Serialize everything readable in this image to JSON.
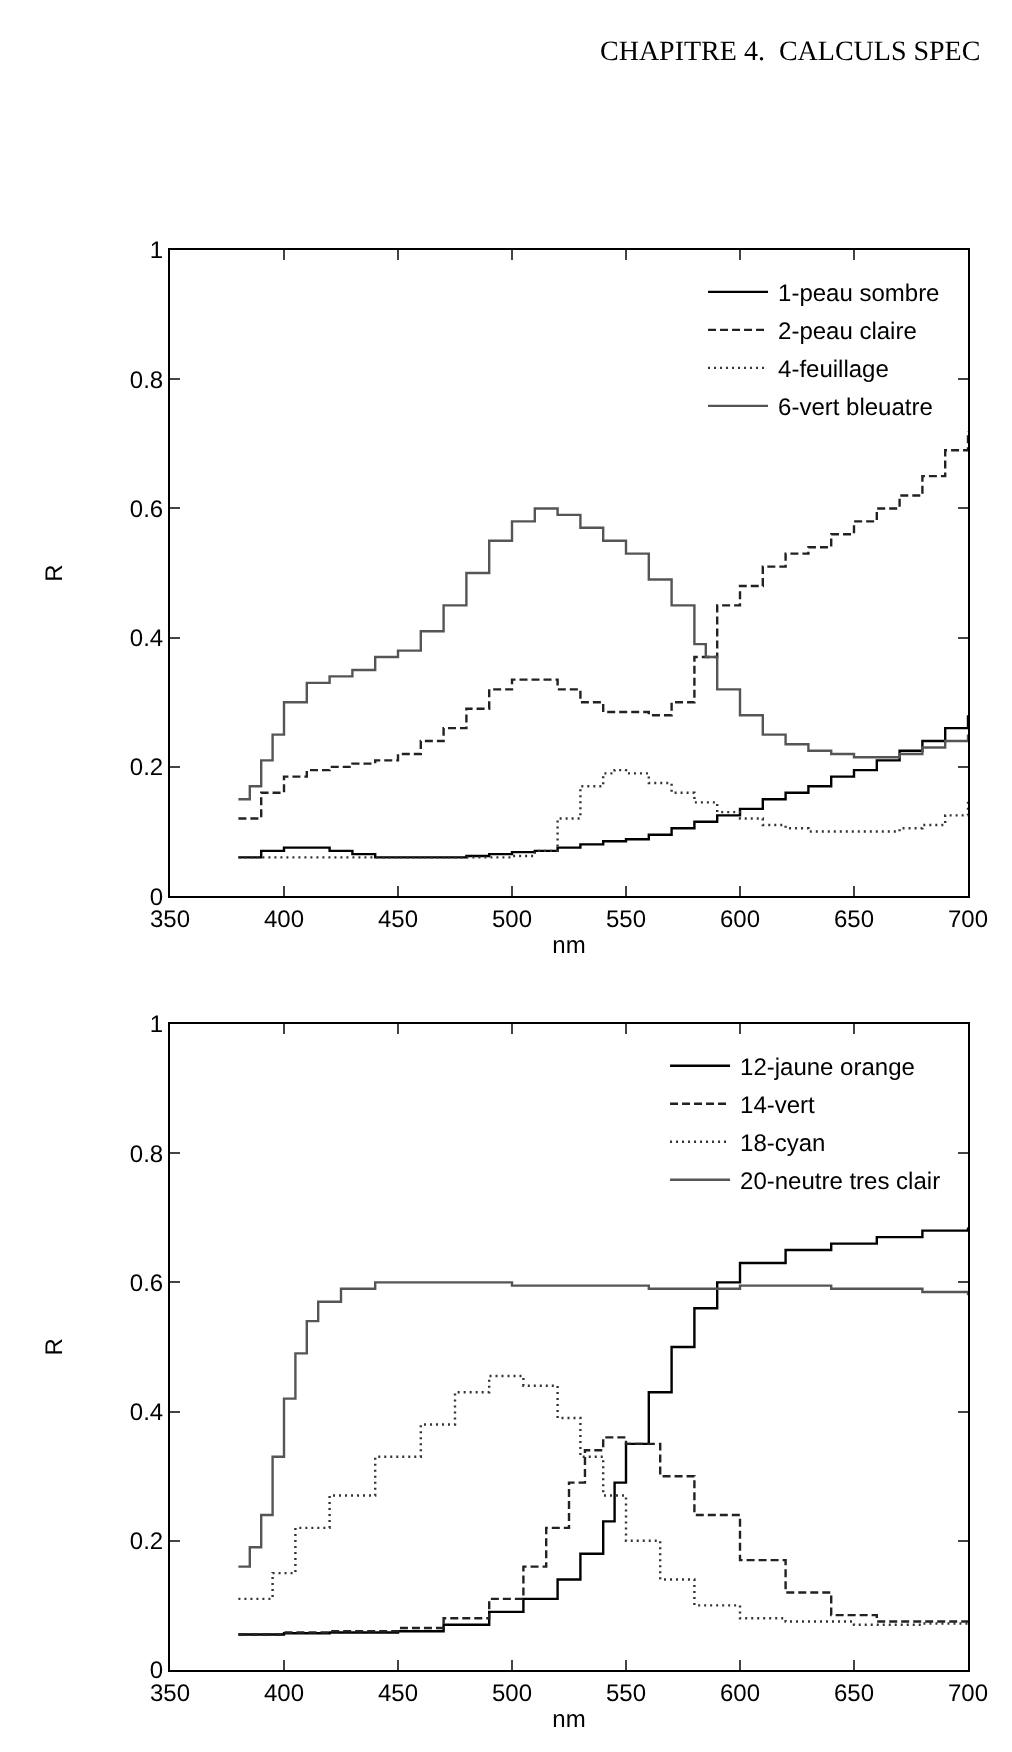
{
  "chart_data": [
    {
      "type": "step",
      "xlabel": "nm",
      "ylabel": "R",
      "xlim": [
        350,
        700
      ],
      "ylim": [
        0,
        1
      ],
      "xticks": [
        350,
        400,
        450,
        500,
        550,
        600,
        650,
        700
      ],
      "yticks": [
        0,
        0.2,
        0.4,
        0.6,
        0.8,
        1
      ],
      "legend": "top right",
      "annotations": [
        "CHAPITRE 4.  CALCULS SPEC"
      ],
      "series": [
        {
          "name": "1-peau sombre",
          "color": "#000000",
          "line_style": "solid",
          "x": [
            380,
            390,
            400,
            410,
            420,
            430,
            440,
            450,
            460,
            470,
            480,
            490,
            500,
            510,
            520,
            530,
            540,
            550,
            560,
            570,
            580,
            590,
            600,
            610,
            620,
            630,
            640,
            650,
            660,
            670,
            680,
            690,
            700
          ],
          "values": [
            0.06,
            0.07,
            0.075,
            0.075,
            0.07,
            0.065,
            0.06,
            0.06,
            0.06,
            0.06,
            0.062,
            0.065,
            0.068,
            0.07,
            0.075,
            0.08,
            0.085,
            0.088,
            0.095,
            0.105,
            0.115,
            0.125,
            0.135,
            0.15,
            0.16,
            0.17,
            0.185,
            0.195,
            0.21,
            0.225,
            0.24,
            0.26,
            0.28
          ]
        },
        {
          "name": "2-peau claire",
          "color": "#222222",
          "line_style": "dashed",
          "x": [
            380,
            390,
            400,
            410,
            420,
            430,
            440,
            450,
            460,
            470,
            480,
            490,
            500,
            510,
            520,
            530,
            540,
            550,
            560,
            570,
            580,
            590,
            600,
            610,
            620,
            630,
            640,
            650,
            660,
            670,
            680,
            690,
            700
          ],
          "values": [
            0.12,
            0.16,
            0.185,
            0.195,
            0.2,
            0.205,
            0.21,
            0.22,
            0.24,
            0.26,
            0.29,
            0.32,
            0.335,
            0.335,
            0.32,
            0.3,
            0.285,
            0.285,
            0.28,
            0.3,
            0.37,
            0.45,
            0.48,
            0.51,
            0.53,
            0.54,
            0.56,
            0.58,
            0.6,
            0.62,
            0.65,
            0.69,
            0.72
          ]
        },
        {
          "name": "4-feuillage",
          "color": "#333333",
          "line_style": "dotted",
          "x": [
            380,
            400,
            420,
            440,
            460,
            480,
            500,
            510,
            520,
            530,
            540,
            545,
            550,
            560,
            570,
            580,
            590,
            600,
            610,
            620,
            630,
            640,
            650,
            660,
            670,
            680,
            690,
            700
          ],
          "values": [
            0.06,
            0.06,
            0.06,
            0.06,
            0.06,
            0.06,
            0.062,
            0.07,
            0.12,
            0.17,
            0.19,
            0.195,
            0.19,
            0.175,
            0.16,
            0.145,
            0.13,
            0.12,
            0.11,
            0.105,
            0.1,
            0.1,
            0.1,
            0.1,
            0.105,
            0.11,
            0.125,
            0.15
          ]
        },
        {
          "name": "6-vert bleuatre",
          "color": "#555555",
          "line_style": "solid",
          "x": [
            380,
            385,
            390,
            395,
            400,
            410,
            420,
            430,
            440,
            450,
            460,
            470,
            480,
            490,
            500,
            510,
            520,
            530,
            540,
            550,
            560,
            570,
            580,
            585,
            590,
            600,
            610,
            620,
            630,
            640,
            650,
            660,
            670,
            680,
            690,
            700
          ],
          "values": [
            0.15,
            0.17,
            0.21,
            0.25,
            0.3,
            0.33,
            0.34,
            0.35,
            0.37,
            0.38,
            0.41,
            0.45,
            0.5,
            0.55,
            0.58,
            0.6,
            0.59,
            0.57,
            0.55,
            0.53,
            0.49,
            0.45,
            0.39,
            0.37,
            0.32,
            0.28,
            0.25,
            0.235,
            0.225,
            0.22,
            0.215,
            0.215,
            0.22,
            0.23,
            0.24,
            0.25
          ]
        }
      ]
    },
    {
      "type": "step",
      "xlabel": "nm",
      "ylabel": "R",
      "xlim": [
        350,
        700
      ],
      "ylim": [
        0,
        1
      ],
      "xticks": [
        350,
        400,
        450,
        500,
        550,
        600,
        650,
        700
      ],
      "yticks": [
        0,
        0.2,
        0.4,
        0.6,
        0.8,
        1
      ],
      "legend": "top right",
      "series": [
        {
          "name": "12-jaune orange",
          "color": "#000000",
          "line_style": "solid",
          "x": [
            380,
            400,
            420,
            450,
            470,
            490,
            505,
            520,
            530,
            540,
            545,
            550,
            560,
            570,
            580,
            590,
            600,
            620,
            640,
            660,
            680,
            700
          ],
          "values": [
            0.055,
            0.057,
            0.058,
            0.06,
            0.07,
            0.09,
            0.11,
            0.14,
            0.18,
            0.23,
            0.29,
            0.35,
            0.43,
            0.5,
            0.56,
            0.6,
            0.63,
            0.65,
            0.66,
            0.67,
            0.68,
            0.685
          ]
        },
        {
          "name": "14-vert",
          "color": "#222222",
          "line_style": "dashed",
          "x": [
            380,
            400,
            420,
            450,
            470,
            490,
            505,
            515,
            525,
            532,
            540,
            550,
            565,
            580,
            600,
            620,
            640,
            660,
            680,
            700
          ],
          "values": [
            0.055,
            0.058,
            0.06,
            0.065,
            0.08,
            0.11,
            0.16,
            0.22,
            0.29,
            0.34,
            0.36,
            0.35,
            0.3,
            0.24,
            0.17,
            0.12,
            0.085,
            0.075,
            0.075,
            0.08
          ]
        },
        {
          "name": "18-cyan",
          "color": "#333333",
          "line_style": "dotted",
          "x": [
            380,
            395,
            405,
            420,
            440,
            460,
            475,
            490,
            505,
            520,
            530,
            540,
            550,
            565,
            580,
            600,
            620,
            650,
            680,
            700
          ],
          "values": [
            0.11,
            0.15,
            0.22,
            0.27,
            0.33,
            0.38,
            0.43,
            0.455,
            0.44,
            0.39,
            0.33,
            0.27,
            0.2,
            0.14,
            0.1,
            0.08,
            0.075,
            0.07,
            0.072,
            0.075
          ]
        },
        {
          "name": "20-neutre tres clair",
          "color": "#555555",
          "line_style": "solid",
          "x": [
            380,
            385,
            390,
            395,
            400,
            405,
            410,
            415,
            425,
            440,
            500,
            560,
            600,
            640,
            680,
            700
          ],
          "values": [
            0.16,
            0.19,
            0.24,
            0.33,
            0.42,
            0.49,
            0.54,
            0.57,
            0.59,
            0.6,
            0.595,
            0.59,
            0.595,
            0.59,
            0.585,
            0.58
          ]
        }
      ]
    }
  ]
}
